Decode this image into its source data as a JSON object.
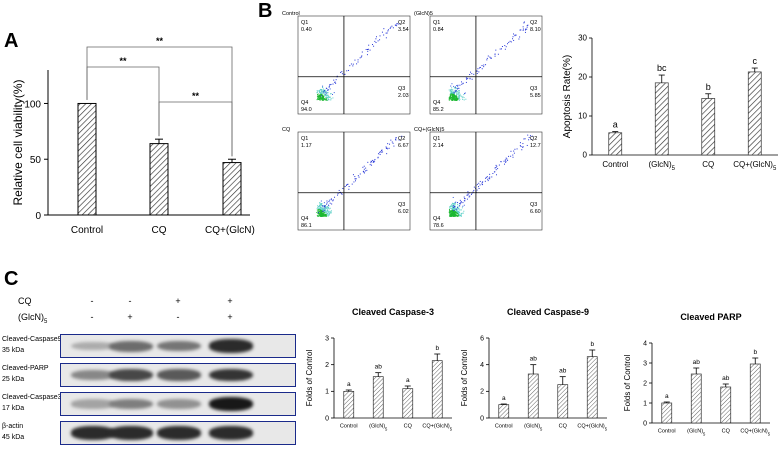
{
  "panels": {
    "a": "A",
    "b": "B",
    "c": "C"
  },
  "panelA": {
    "chart_data": {
      "type": "bar",
      "categories": [
        "Control",
        "CQ",
        "CQ+(GlcN)5"
      ],
      "values": [
        100,
        64,
        47
      ],
      "errors": [
        0.5,
        4,
        3
      ],
      "ylabel": "Relative cell viability(%)",
      "ylim": [
        0,
        130
      ],
      "yticks": [
        "0",
        "50",
        "100"
      ],
      "significance": [
        "**",
        "**",
        "**"
      ]
    }
  },
  "panelB": {
    "flow": [
      {
        "title": "Control",
        "q1": "Q1",
        "q1v": "0.40",
        "q2": "Q2",
        "q2v": "3.54",
        "q3": "Q3",
        "q3v": "2.03",
        "q4": "Q4",
        "q4v": "94.0"
      },
      {
        "title": "(GlcN)5",
        "q1": "Q1",
        "q1v": "0.84",
        "q2": "Q2",
        "q2v": "8.10",
        "q3": "Q3",
        "q3v": "5.85",
        "q4": "Q4",
        "q4v": "85.2"
      },
      {
        "title": "CQ",
        "q1": "Q1",
        "q1v": "1.17",
        "q2": "Q2",
        "q2v": "6.67",
        "q3": "Q3",
        "q3v": "6.02",
        "q4": "Q4",
        "q4v": "86.1"
      },
      {
        "title": "CQ+(GlcN)5",
        "q1": "Q1",
        "q1v": "2.14",
        "q2": "Q2",
        "q2v": "12.7",
        "q3": "Q3",
        "q3v": "6.60",
        "q4": "Q4",
        "q4v": "78.6"
      }
    ],
    "chart_data": {
      "type": "bar",
      "categories": [
        "Control",
        "(GlcN)5",
        "CQ",
        "CQ+(GlcN)5"
      ],
      "values": [
        5.7,
        18.5,
        14.5,
        21.3
      ],
      "errors": [
        0.3,
        2.0,
        1.2,
        1.0
      ],
      "letters": [
        "a",
        "bc",
        "b",
        "c"
      ],
      "ylabel": "Apoptosis Rate(%)",
      "ylim": [
        0,
        30
      ],
      "yticks": [
        "0",
        "10",
        "20",
        "30"
      ]
    }
  },
  "panelC": {
    "conditions": [
      {
        "label": "CQ",
        "signs": [
          "-",
          "-",
          "+",
          "+"
        ]
      },
      {
        "label": "(GlcN)5",
        "signs": [
          "-",
          "+",
          "-",
          "+"
        ]
      }
    ],
    "blots": [
      {
        "name": "Cleaved-Caspase9",
        "kda": "35 kDa",
        "intensity": [
          0.15,
          0.5,
          0.45,
          0.85
        ]
      },
      {
        "name": "Cleaved-PARP",
        "kda": "25 kDa",
        "intensity": [
          0.35,
          0.7,
          0.6,
          0.8
        ]
      },
      {
        "name": "Cleaved-Caspase3",
        "kda": "17 kDa",
        "intensity": [
          0.2,
          0.4,
          0.3,
          0.95
        ]
      },
      {
        "name": "β-actin",
        "kda": "45 kDa",
        "intensity": [
          0.85,
          0.85,
          0.85,
          0.85
        ]
      }
    ],
    "charts": [
      {
        "type": "bar",
        "title": "Cleaved Caspase-3",
        "categories": [
          "Control",
          "(GlcN)5",
          "CQ",
          "CQ+(GlcN)5"
        ],
        "values": [
          1.0,
          1.55,
          1.1,
          2.15
        ],
        "errors": [
          0.05,
          0.15,
          0.1,
          0.25
        ],
        "letters": [
          "a",
          "ab",
          "a",
          "b"
        ],
        "ylabel": "Folds of Control",
        "ylim": [
          0,
          3
        ],
        "yticks": [
          "0",
          "1",
          "2",
          "3"
        ]
      },
      {
        "type": "bar",
        "title": "Cleaved Caspase-9",
        "categories": [
          "Control",
          "(GlcN)5",
          "CQ",
          "CQ+(GlcN)5"
        ],
        "values": [
          1.0,
          3.3,
          2.5,
          4.6
        ],
        "errors": [
          0.05,
          0.7,
          0.6,
          0.5
        ],
        "letters": [
          "a",
          "ab",
          "ab",
          "b"
        ],
        "ylabel": "Folds of Control",
        "ylim": [
          0,
          6
        ],
        "yticks": [
          "0",
          "2",
          "4",
          "6"
        ]
      },
      {
        "type": "bar",
        "title": "Cleaved PARP",
        "categories": [
          "Control",
          "(GlcN)5",
          "CQ",
          "CQ+(GlcN)5"
        ],
        "values": [
          1.0,
          2.45,
          1.8,
          2.95
        ],
        "errors": [
          0.05,
          0.3,
          0.15,
          0.3
        ],
        "letters": [
          "a",
          "ab",
          "ab",
          "b"
        ],
        "ylabel": "Folds of Control",
        "ylim": [
          0,
          4
        ],
        "yticks": [
          "0",
          "1",
          "2",
          "3",
          "4"
        ]
      }
    ]
  }
}
